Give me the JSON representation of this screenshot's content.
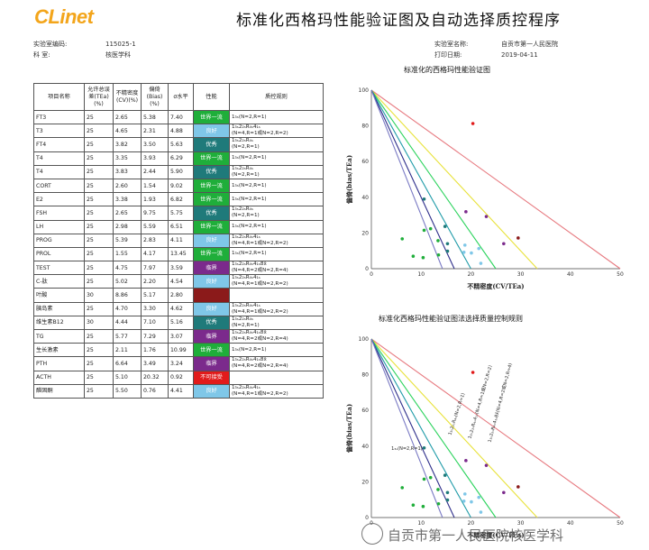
{
  "logo": {
    "text_main": "CLi",
    "text_tail": "net"
  },
  "title": "标准化西格玛性能验证图及自动选择质控程序",
  "meta_left": [
    {
      "key": "实验室编码:",
      "value": "115025-1"
    },
    {
      "key": "科 室:",
      "value": "核医学科"
    }
  ],
  "meta_right": [
    {
      "key": "实验室名称:",
      "value": "自贡市第一人民医院"
    },
    {
      "key": "打印日期:",
      "value": "2019-04-11"
    }
  ],
  "table": {
    "headers": [
      "项目名称",
      "允许总误差(TEa)(%)",
      "不精密度(CV)(%)",
      "偏倚(Bias)(%)",
      "σ水平",
      "性能",
      "质控规则"
    ],
    "rows": [
      {
        "name": "FT3",
        "tea": "25",
        "cv": "2.65",
        "bias": "5.38",
        "sigma": "7.40",
        "perf": "世界一流",
        "color": "#1fae3a",
        "rule1": "1₃ₛ(N=2,R=1)",
        "rule2": ""
      },
      {
        "name": "T3",
        "tea": "25",
        "cv": "4.65",
        "bias": "2.31",
        "sigma": "4.88",
        "perf": "良好",
        "color": "#7fc7e8",
        "rule1": "1₃ₛ2₂ₛR₄ₛ4₁ₛ",
        "rule2": "(N=4,R=1或N=2,R=2)"
      },
      {
        "name": "FT4",
        "tea": "25",
        "cv": "3.82",
        "bias": "3.50",
        "sigma": "5.63",
        "perf": "优秀",
        "color": "#1f7a7a",
        "rule1": "1₃ₛ2₂ₛR₄ₛ",
        "rule2": "(N=2,R=1)"
      },
      {
        "name": "T4",
        "tea": "25",
        "cv": "3.35",
        "bias": "3.93",
        "sigma": "6.29",
        "perf": "世界一流",
        "color": "#1fae3a",
        "rule1": "1₃ₛ(N=2,R=1)",
        "rule2": ""
      },
      {
        "name": "T4",
        "tea": "25",
        "cv": "3.83",
        "bias": "2.44",
        "sigma": "5.90",
        "perf": "优秀",
        "color": "#1f7a7a",
        "rule1": "1₃ₛ2₂ₛR₄ₛ",
        "rule2": "(N=2,R=1)"
      },
      {
        "name": "CORT",
        "tea": "25",
        "cv": "2.60",
        "bias": "1.54",
        "sigma": "9.02",
        "perf": "世界一流",
        "color": "#1fae3a",
        "rule1": "1₃ₛ(N=2,R=1)",
        "rule2": ""
      },
      {
        "name": "E2",
        "tea": "25",
        "cv": "3.38",
        "bias": "1.93",
        "sigma": "6.82",
        "perf": "世界一流",
        "color": "#1fae3a",
        "rule1": "1₃ₛ(N=2,R=1)",
        "rule2": ""
      },
      {
        "name": "FSH",
        "tea": "25",
        "cv": "2.65",
        "bias": "9.75",
        "sigma": "5.75",
        "perf": "优秀",
        "color": "#1f7a7a",
        "rule1": "1₃ₛ2₂ₛR₄ₛ",
        "rule2": "(N=2,R=1)"
      },
      {
        "name": "LH",
        "tea": "25",
        "cv": "2.98",
        "bias": "5.59",
        "sigma": "6.51",
        "perf": "世界一流",
        "color": "#1fae3a",
        "rule1": "1₃ₛ(N=2,R=1)",
        "rule2": ""
      },
      {
        "name": "PROG",
        "tea": "25",
        "cv": "5.39",
        "bias": "2.83",
        "sigma": "4.11",
        "perf": "良好",
        "color": "#7fc7e8",
        "rule1": "1₃ₛ2₂ₛR₄ₛ4₁ₛ",
        "rule2": "(N=4,R=1或N=2,R=2)"
      },
      {
        "name": "PROL",
        "tea": "25",
        "cv": "1.55",
        "bias": "4.17",
        "sigma": "13.45",
        "perf": "世界一流",
        "color": "#1fae3a",
        "rule1": "1₃ₛ(N=2,R=1)",
        "rule2": ""
      },
      {
        "name": "TEST",
        "tea": "25",
        "cv": "4.75",
        "bias": "7.97",
        "sigma": "3.59",
        "perf": "临界",
        "color": "#7b2a8c",
        "rule1": "1₃ₛ2₂ₛR₄ₛ4₁ₛ8x̄",
        "rule2": "(N=4,R=2或N=2,R=4)"
      },
      {
        "name": "C-肽",
        "tea": "25",
        "cv": "5.02",
        "bias": "2.20",
        "sigma": "4.54",
        "perf": "良好",
        "color": "#7fc7e8",
        "rule1": "1₃ₛ2₂ₛR₄ₛ4₁ₛ",
        "rule2": "(N=4,R=1或N=2,R=2)"
      },
      {
        "name": "叶酸",
        "tea": "30",
        "cv": "8.86",
        "bias": "5.17",
        "sigma": "2.80",
        "perf": "",
        "color": "#8b1a1a",
        "rule1": "",
        "rule2": ""
      },
      {
        "name": "胰岛素",
        "tea": "25",
        "cv": "4.70",
        "bias": "3.30",
        "sigma": "4.62",
        "perf": "良好",
        "color": "#7fc7e8",
        "rule1": "1₃ₛ2₂ₛR₄ₛ4₁ₛ",
        "rule2": "(N=4,R=1或N=2,R=2)"
      },
      {
        "name": "维生素B12",
        "tea": "30",
        "cv": "4.44",
        "bias": "7.10",
        "sigma": "5.16",
        "perf": "优秀",
        "color": "#1f7a7a",
        "rule1": "1₃ₛ2₂ₛR₄ₛ",
        "rule2": "(N=2,R=1)"
      },
      {
        "name": "TG",
        "tea": "25",
        "cv": "5.77",
        "bias": "7.29",
        "sigma": "3.07",
        "perf": "临界",
        "color": "#7b2a8c",
        "rule1": "1₃ₛ2₂ₛR₄ₛ4₁ₛ8x̄",
        "rule2": "(N=4,R=2或N=2,R=4)"
      },
      {
        "name": "生长激素",
        "tea": "25",
        "cv": "2.11",
        "bias": "1.76",
        "sigma": "10.99",
        "perf": "世界一流",
        "color": "#1fae3a",
        "rule1": "1₃ₛ(N=2,R=1)",
        "rule2": ""
      },
      {
        "name": "PTH",
        "tea": "25",
        "cv": "6.64",
        "bias": "3.49",
        "sigma": "3.24",
        "perf": "临界",
        "color": "#7b2a8c",
        "rule1": "1₃ₛ2₂ₛR₄ₛ4₁ₛ8x̄",
        "rule2": "(N=4,R=2或N=2,R=4)"
      },
      {
        "name": "ACTH",
        "tea": "25",
        "cv": "5.10",
        "bias": "20.32",
        "sigma": "0.92",
        "perf": "不可接受",
        "color": "#e11b1b",
        "rule1": "",
        "rule2": ""
      },
      {
        "name": "醛固酮",
        "tea": "25",
        "cv": "5.50",
        "bias": "0.76",
        "sigma": "4.41",
        "perf": "良好",
        "color": "#7fc7e8",
        "rule1": "1₃ₛ2₂ₛR₄ₛ4₁ₛ",
        "rule2": "(N=4,R=1或N=2,R=2)"
      }
    ]
  },
  "chart_data": [
    {
      "type": "scatter",
      "title": "标准化的西格玛性能验证图",
      "xlabel": "不精密度(CV/TEa)",
      "ylabel": "偏倚(bias/TEa)",
      "xlim": [
        0,
        50
      ],
      "ylim": [
        0,
        100
      ],
      "xticks": [
        0,
        10,
        20,
        30,
        40,
        50
      ],
      "yticks": [
        0,
        20,
        40,
        60,
        80,
        100
      ],
      "grid": false,
      "lines": [
        {
          "sigma": 2,
          "color": "#e77a80"
        },
        {
          "sigma": 3,
          "color": "#e8e23a"
        },
        {
          "sigma": 4,
          "color": "#2bd35c"
        },
        {
          "sigma": 5,
          "color": "#1f9ba8"
        },
        {
          "sigma": 6,
          "color": "#2d2d8a"
        },
        {
          "sigma": 7,
          "color": "#7a7ac4"
        }
      ],
      "points": [
        {
          "x": 10.6,
          "y": 21.5,
          "color": "#1fae3a"
        },
        {
          "x": 18.6,
          "y": 9.2,
          "color": "#7fc7e8"
        },
        {
          "x": 15.3,
          "y": 14.0,
          "color": "#1f7a7a"
        },
        {
          "x": 13.4,
          "y": 15.7,
          "color": "#1fae3a"
        },
        {
          "x": 15.3,
          "y": 9.8,
          "color": "#1f7a7a"
        },
        {
          "x": 10.4,
          "y": 6.2,
          "color": "#1fae3a"
        },
        {
          "x": 13.5,
          "y": 7.7,
          "color": "#1fae3a"
        },
        {
          "x": 10.6,
          "y": 39.0,
          "color": "#1f7a7a"
        },
        {
          "x": 11.9,
          "y": 22.4,
          "color": "#1fae3a"
        },
        {
          "x": 21.6,
          "y": 11.3,
          "color": "#7fc7e8"
        },
        {
          "x": 6.2,
          "y": 16.7,
          "color": "#1fae3a"
        },
        {
          "x": 19.0,
          "y": 31.9,
          "color": "#7b2a8c"
        },
        {
          "x": 20.1,
          "y": 8.8,
          "color": "#7fc7e8"
        },
        {
          "x": 29.5,
          "y": 17.2,
          "color": "#8b1a1a"
        },
        {
          "x": 18.8,
          "y": 13.2,
          "color": "#7fc7e8"
        },
        {
          "x": 14.8,
          "y": 23.7,
          "color": "#1f7a7a"
        },
        {
          "x": 23.1,
          "y": 29.2,
          "color": "#7b2a8c"
        },
        {
          "x": 8.4,
          "y": 7.0,
          "color": "#1fae3a"
        },
        {
          "x": 26.6,
          "y": 14.0,
          "color": "#7b2a8c"
        },
        {
          "x": 20.4,
          "y": 81.3,
          "color": "#e11b1b"
        },
        {
          "x": 22.0,
          "y": 3.0,
          "color": "#7fc7e8"
        }
      ]
    },
    {
      "type": "scatter",
      "title": "标准化西格玛性能验证图法选择质量控制规则",
      "xlabel": "不精密度(CV/TEa)",
      "ylabel": "偏倚(bias/TEa)",
      "xlim": [
        0,
        50
      ],
      "ylim": [
        0,
        100
      ],
      "xticks": [
        0,
        10,
        20,
        30,
        40,
        50
      ],
      "yticks": [
        0,
        20,
        40,
        60,
        80,
        100
      ],
      "grid": false,
      "line_labels": [
        "1₃ₛ2₂ₛR₄ₛ4₁ₛ8x̄(N=4,R=2或N=2,R=4)",
        "1₃ₛ2₂ₛR₄ₛ4₁ₛ(N=4,R=1或N=2,R=2)",
        "1₃ₛ2₂ₛR₄ₛ(N=2,R=1)",
        "1₃ₛ(N=2,R=1)"
      ]
    }
  ],
  "watermark": "自贡市第一人民医院核医学科"
}
